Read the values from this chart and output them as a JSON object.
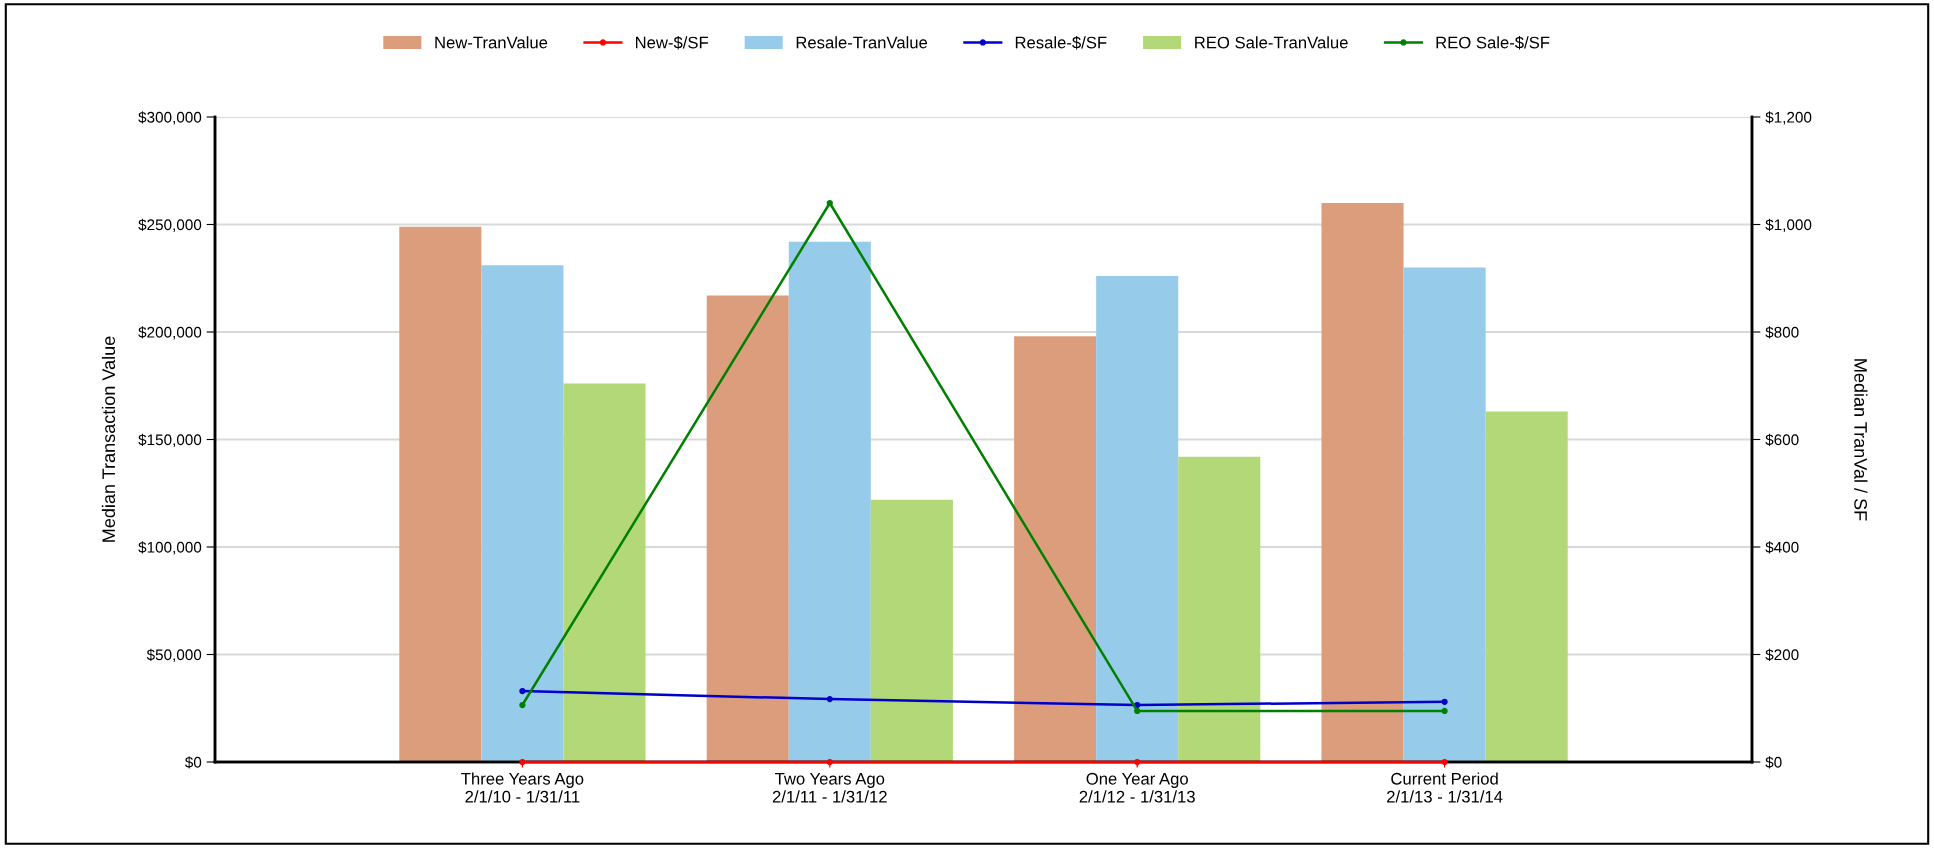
{
  "chart_data": {
    "type": "bar",
    "categories": [
      "Three Years Ago\n2/1/10 - 1/31/11",
      "Two Years Ago\n2/1/11 - 1/31/12",
      "One Year Ago\n2/1/12 - 1/31/13",
      "Current Period\n2/1/13 - 1/31/14"
    ],
    "series": [
      {
        "name": "New-TranValue",
        "color": "#dc9d7d",
        "values": [
          249000,
          217000,
          198000,
          260000
        ]
      },
      {
        "name": "New-$/SF",
        "type": "line",
        "axis": "y2",
        "color": "#ff0000",
        "values": [
          0,
          0,
          0,
          0
        ]
      },
      {
        "name": "Resale-TranValue",
        "color": "#97cbea",
        "values": [
          231000,
          242000,
          226000,
          230000
        ]
      },
      {
        "name": "Resale-$/SF",
        "type": "line",
        "axis": "y2",
        "color": "#0000cc",
        "values": [
          132,
          117,
          106,
          112
        ]
      },
      {
        "name": "REO Sale-TranValue",
        "color": "#b2d877",
        "values": [
          176000,
          122000,
          142000,
          163000
        ]
      },
      {
        "name": "REO Sale-$/SF",
        "type": "line",
        "axis": "y2",
        "color": "#008000",
        "values": [
          106,
          1040,
          95,
          95
        ]
      }
    ],
    "ylabel": "Median Transaction Value",
    "y2label": "Median TranVal / SF",
    "ylim": [
      0,
      300000
    ],
    "yticks": [
      {
        "value": 0,
        "label": "$0"
      },
      {
        "value": 50000,
        "label": "$50,000"
      },
      {
        "value": 100000,
        "label": "$100,000"
      },
      {
        "value": 150000,
        "label": "$150,000"
      },
      {
        "value": 200000,
        "label": "$200,000"
      },
      {
        "value": 250000,
        "label": "$250,000"
      },
      {
        "value": 300000,
        "label": "$300,000"
      }
    ],
    "y2lim": [
      0,
      1200
    ],
    "y2ticks": [
      {
        "value": 0,
        "label": "$0"
      },
      {
        "value": 200,
        "label": "$200"
      },
      {
        "value": 400,
        "label": "$400"
      },
      {
        "value": 600,
        "label": "$600"
      },
      {
        "value": 800,
        "label": "$800"
      },
      {
        "value": 1000,
        "label": "$1,000"
      },
      {
        "value": 1200,
        "label": "$1,200"
      }
    ],
    "grid": "y",
    "legend": "top",
    "marker": "circle",
    "line_style": "solid"
  }
}
